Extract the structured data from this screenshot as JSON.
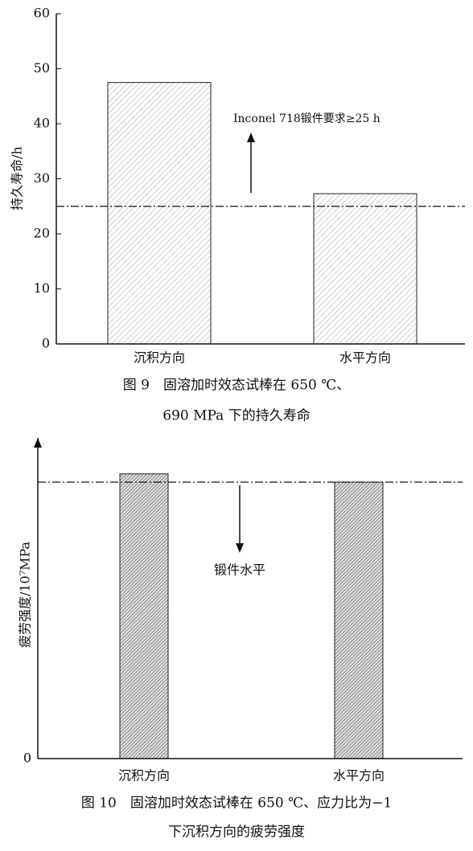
{
  "chart_data": [
    {
      "type": "bar",
      "y_label": "持久寿命/h",
      "categories": [
        "沉积方向",
        "水平方向"
      ],
      "values": [
        47.5,
        27.3
      ],
      "ylim": [
        0,
        60
      ],
      "yticks": [
        0,
        10,
        20,
        30,
        40,
        50,
        60
      ],
      "reference_line": {
        "value": 25,
        "label": "Inconel 718锻件要求≥25 h"
      },
      "caption": [
        "图 9　固溶加时效态试棒在 650 ℃、",
        "690 MPa 下的持久寿命"
      ]
    },
    {
      "type": "bar",
      "y_label": "疲劳强度/10⁷MPa",
      "categories": [
        "沉积方向",
        "水平方向"
      ],
      "values": [
        1.03,
        1.0
      ],
      "ylim": [
        0,
        1.16
      ],
      "yticks": [
        0
      ],
      "reference_line": {
        "value": 1.0,
        "label": "锻件水平"
      },
      "caption": [
        "图 10　固溶加时效态试棒在 650 ℃、应力比为−1",
        "下沉积方向的疲劳强度"
      ]
    }
  ]
}
